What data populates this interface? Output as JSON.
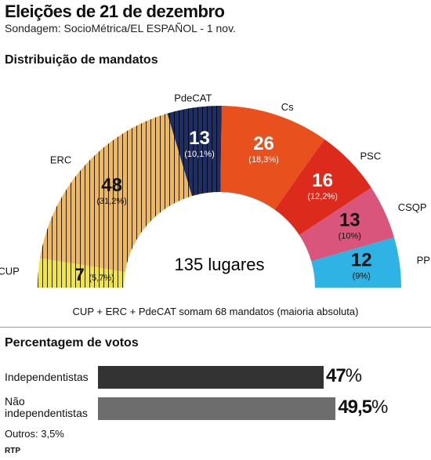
{
  "header": {
    "title": "Eleições de 21 de dezembro",
    "subtitle": "Sondagem: SocioMétrica/EL ESPAÑOL - 1 nov."
  },
  "seats_section": {
    "title": "Distribuição de mandatos",
    "total_label": "135 lugares",
    "caption": "CUP + ERC + PdeCAT somam 68 mandatos (maioria absoluta)"
  },
  "votes_section": {
    "title": "Percentagem de votos",
    "others": "Outros: 3,5%"
  },
  "source": "RTP",
  "chart_data": [
    {
      "type": "pie",
      "subtype": "parliament-hemicycle",
      "title": "Distribuição de mandatos",
      "total": 135,
      "total_label": "135 lugares",
      "parties": [
        {
          "name": "CUP",
          "seats": 7,
          "pct": "(5,7%)",
          "color": "#f5e72a",
          "hatched": true
        },
        {
          "name": "ERC",
          "seats": 48,
          "pct": "(31,2%)",
          "color": "#f5b84e",
          "hatched": true
        },
        {
          "name": "PdeCAT",
          "seats": 13,
          "pct": "(10,1%)",
          "color": "#1b2d6b",
          "hatched": true
        },
        {
          "name": "Cs",
          "seats": 26,
          "pct": "(18,3%)",
          "color": "#e8501e",
          "hatched": false
        },
        {
          "name": "PSC",
          "seats": 16,
          "pct": "(12,2%)",
          "color": "#dc2a1c",
          "hatched": false
        },
        {
          "name": "CSQP",
          "seats": 13,
          "pct": "(10%)",
          "color": "#d9557c",
          "hatched": false
        },
        {
          "name": "PP",
          "seats": 12,
          "pct": "(9%)",
          "color": "#2fb2e4",
          "hatched": false
        }
      ]
    },
    {
      "type": "bar",
      "orientation": "horizontal",
      "title": "Percentagem de votos",
      "categories": [
        "Independentistas",
        "Não independentistas"
      ],
      "values": [
        47,
        49.5
      ],
      "value_labels": [
        "47%",
        "49,5%"
      ],
      "colors": [
        "#333333",
        "#6d6d6d"
      ],
      "xlim": [
        0,
        55
      ]
    }
  ]
}
